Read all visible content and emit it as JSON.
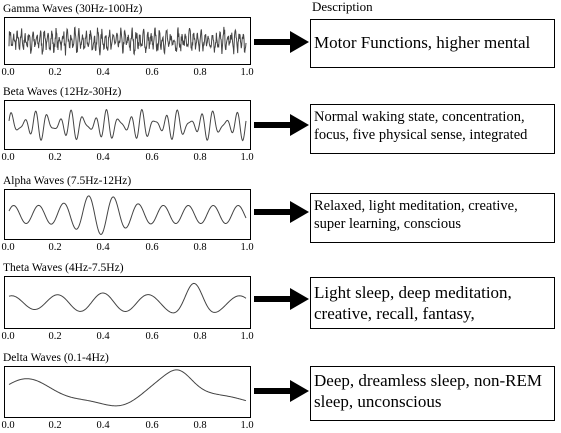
{
  "description_header": "Description",
  "x_ticks": [
    "0.0",
    "0.2",
    "0.4",
    "0.6",
    "0.8",
    "1.0"
  ],
  "waves": [
    {
      "title": "Gamma Waves (30Hz-100Hz)",
      "description": "Motor Functions, higher mental"
    },
    {
      "title": "Beta Waves (12Hz-30Hz)",
      "description": "Normal waking state, concentration, focus, five physical sense, integrated"
    },
    {
      "title": "Alpha Waves (7.5Hz-12Hz)",
      "description": "Relaxed, light meditation, creative, super learning, conscious"
    },
    {
      "title": "Theta Waves (4Hz-7.5Hz)",
      "description": "Light sleep, deep meditation, creative, recall, fantasy,"
    },
    {
      "title": "Delta Waves (0.1-4Hz)",
      "description": "Deep, dreamless sleep, non-REM sleep, unconscious"
    }
  ]
}
